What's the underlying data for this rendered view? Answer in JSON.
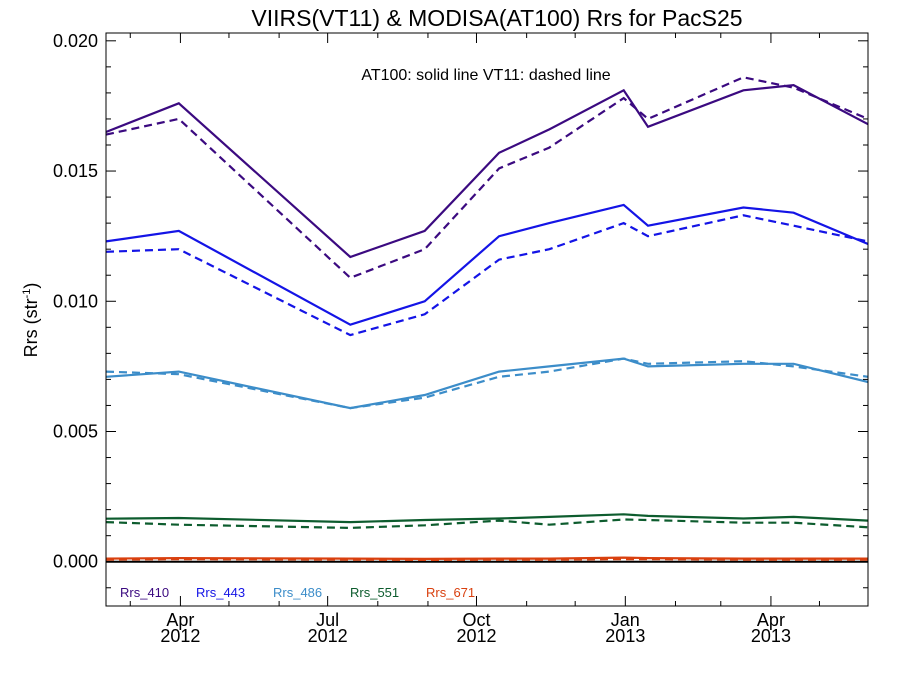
{
  "chart_data": {
    "type": "line",
    "title": "VIIRS(VT11) & MODISA(AT100)  Rrs for PacS25",
    "ylabel_main": "Rrs (str",
    "ylabel_sup": "-1",
    "ylabel_close": ")",
    "xlabel": "",
    "annotation": "AT100: solid line   VT11: dashed line",
    "xlim": [
      "2012-02-15",
      "2013-05-31"
    ],
    "ylim": [
      -0.0017,
      0.0203
    ],
    "yticks": [
      {
        "value": 0.0,
        "label": "0.000"
      },
      {
        "value": 0.005,
        "label": "0.005"
      },
      {
        "value": 0.01,
        "label": "0.010"
      },
      {
        "value": 0.015,
        "label": "0.015"
      },
      {
        "value": 0.02,
        "label": "0.020"
      }
    ],
    "xticks": [
      {
        "date": "2012-04-01",
        "line1": "Apr",
        "line2": "2012"
      },
      {
        "date": "2012-07-01",
        "line1": "Jul",
        "line2": "2012"
      },
      {
        "date": "2012-10-01",
        "line1": "Oct",
        "line2": "2012"
      },
      {
        "date": "2013-01-01",
        "line1": "Jan",
        "line2": "2013"
      },
      {
        "date": "2013-04-01",
        "line1": "Apr",
        "line2": "2013"
      }
    ],
    "x_minor_ticks": [
      "2012-03-01",
      "2012-05-01",
      "2012-06-01",
      "2012-08-01",
      "2012-09-01",
      "2012-11-01",
      "2012-12-01",
      "2013-02-01",
      "2013-03-01",
      "2013-05-01"
    ],
    "zero_line": true,
    "grid": false,
    "legend_position": "bottom-left",
    "series": [
      {
        "name": "Rrs_410",
        "color": "#3b0a80",
        "solid_x": [
          "2012-02-15",
          "2012-03-31",
          "2012-07-15",
          "2012-08-30",
          "2012-10-15",
          "2012-11-15",
          "2012-12-31",
          "2013-01-15",
          "2013-03-15",
          "2013-04-15",
          "2013-05-31"
        ],
        "solid_y": [
          0.0165,
          0.0176,
          0.0117,
          0.0127,
          0.0157,
          0.0166,
          0.0181,
          0.0167,
          0.0181,
          0.0183,
          0.0168
        ],
        "dashed_x": [
          "2012-02-15",
          "2012-03-31",
          "2012-07-15",
          "2012-08-30",
          "2012-10-15",
          "2012-11-15",
          "2012-12-31",
          "2013-01-15",
          "2013-03-15",
          "2013-04-15",
          "2013-05-31"
        ],
        "dashed_y": [
          0.0164,
          0.017,
          0.0109,
          0.012,
          0.0151,
          0.0159,
          0.0178,
          0.017,
          0.0186,
          0.0182,
          0.017
        ]
      },
      {
        "name": "Rrs_443",
        "color": "#1414e6",
        "solid_x": [
          "2012-02-15",
          "2012-03-31",
          "2012-07-15",
          "2012-08-30",
          "2012-10-15",
          "2012-11-15",
          "2012-12-31",
          "2013-01-15",
          "2013-03-15",
          "2013-04-15",
          "2013-05-31"
        ],
        "solid_y": [
          0.0123,
          0.0127,
          0.0091,
          0.01,
          0.0125,
          0.013,
          0.0137,
          0.0129,
          0.0136,
          0.0134,
          0.0122
        ],
        "dashed_x": [
          "2012-02-15",
          "2012-03-31",
          "2012-07-15",
          "2012-08-30",
          "2012-10-15",
          "2012-11-15",
          "2012-12-31",
          "2013-01-15",
          "2013-03-15",
          "2013-04-15",
          "2013-05-31"
        ],
        "dashed_y": [
          0.0119,
          0.012,
          0.0087,
          0.0095,
          0.0116,
          0.012,
          0.013,
          0.0125,
          0.0133,
          0.0129,
          0.0123
        ]
      },
      {
        "name": "Rrs_486",
        "color": "#3c8dc9",
        "solid_x": [
          "2012-02-15",
          "2012-03-31",
          "2012-07-15",
          "2012-08-30",
          "2012-10-15",
          "2012-11-15",
          "2012-12-31",
          "2013-01-15",
          "2013-03-15",
          "2013-04-15",
          "2013-05-31"
        ],
        "solid_y": [
          0.0071,
          0.0073,
          0.0059,
          0.0064,
          0.0073,
          0.0075,
          0.0078,
          0.0075,
          0.0076,
          0.0076,
          0.0069
        ],
        "dashed_x": [
          "2012-02-15",
          "2012-03-31",
          "2012-07-15",
          "2012-08-30",
          "2012-10-15",
          "2012-11-15",
          "2012-12-31",
          "2013-01-15",
          "2013-03-15",
          "2013-04-15",
          "2013-05-31"
        ],
        "dashed_y": [
          0.0073,
          0.0072,
          0.0059,
          0.0063,
          0.0071,
          0.0073,
          0.0078,
          0.0076,
          0.0077,
          0.0075,
          0.0071
        ]
      },
      {
        "name": "Rrs_551",
        "color": "#0d5c2e",
        "solid_x": [
          "2012-02-15",
          "2012-03-31",
          "2012-07-15",
          "2012-08-30",
          "2012-10-15",
          "2012-11-15",
          "2012-12-31",
          "2013-01-15",
          "2013-03-15",
          "2013-04-15",
          "2013-05-31"
        ],
        "solid_y": [
          0.00165,
          0.00168,
          0.00152,
          0.0016,
          0.00166,
          0.00172,
          0.00182,
          0.00176,
          0.00166,
          0.00172,
          0.00158
        ],
        "dashed_x": [
          "2012-02-15",
          "2012-03-31",
          "2012-07-15",
          "2012-08-30",
          "2012-10-15",
          "2012-11-15",
          "2012-12-31",
          "2013-01-15",
          "2013-03-15",
          "2013-04-15",
          "2013-05-31"
        ],
        "dashed_y": [
          0.00152,
          0.00142,
          0.0013,
          0.0014,
          0.00158,
          0.00142,
          0.00162,
          0.0016,
          0.0015,
          0.0015,
          0.00132
        ]
      },
      {
        "name": "Rrs_671",
        "color": "#d9400f",
        "solid_x": [
          "2012-02-15",
          "2012-03-31",
          "2012-07-15",
          "2012-08-30",
          "2012-10-15",
          "2012-11-15",
          "2012-12-31",
          "2013-01-15",
          "2013-03-15",
          "2013-04-15",
          "2013-05-31"
        ],
        "solid_y": [
          0.00012,
          0.00014,
          0.00012,
          0.00011,
          0.00012,
          0.00012,
          0.00016,
          0.00014,
          0.00012,
          0.00012,
          0.00012
        ],
        "dashed_x": [
          "2012-02-15",
          "2012-03-31",
          "2012-07-15",
          "2012-08-30",
          "2012-10-15",
          "2012-11-15",
          "2012-12-31",
          "2013-01-15",
          "2013-03-15",
          "2013-04-15",
          "2013-05-31"
        ],
        "dashed_y": [
          8e-05,
          0.0001,
          8e-05,
          7e-05,
          8e-05,
          8e-05,
          0.0001,
          0.0001,
          8e-05,
          8e-05,
          8e-05
        ]
      }
    ]
  }
}
